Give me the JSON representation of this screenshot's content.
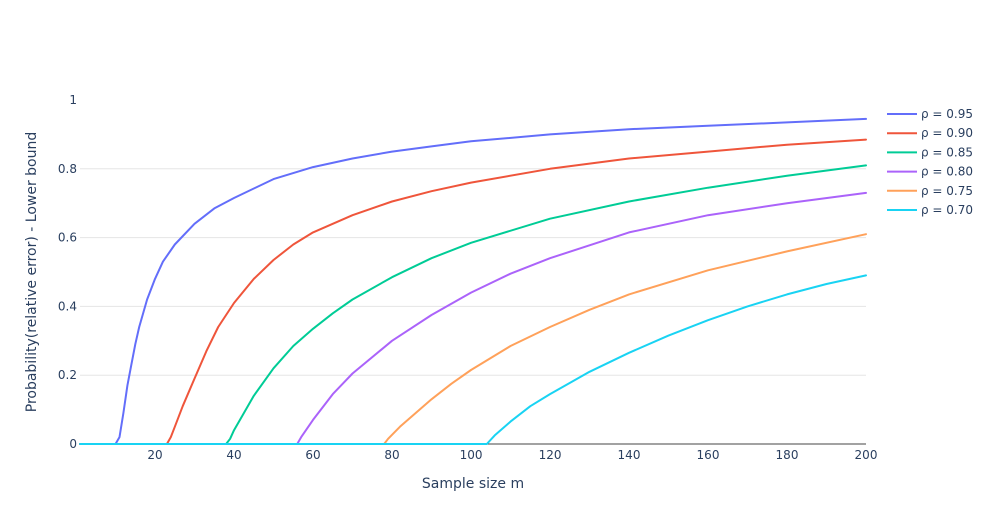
{
  "chart_data": {
    "type": "line",
    "title": "",
    "xlabel": "Sample size m",
    "ylabel": "Probability(relative error) - Lower bound",
    "xlim": [
      1,
      200
    ],
    "ylim": [
      0,
      1
    ],
    "x_ticks": [
      20,
      40,
      60,
      80,
      100,
      120,
      140,
      160,
      180,
      200
    ],
    "y_ticks": [
      0,
      0.2,
      0.4,
      0.6,
      0.8,
      1
    ],
    "x_tick_labels": [
      "20",
      "40",
      "60",
      "80",
      "100",
      "120",
      "140",
      "160",
      "180",
      "200"
    ],
    "y_tick_labels": [
      "0",
      "0.2",
      "0.4",
      "0.6",
      "0.8",
      "1"
    ],
    "grid": true,
    "legend_position": "top-right",
    "series": [
      {
        "name": "ρ = 0.95",
        "color": "#636efa",
        "x": [
          1,
          10,
          11,
          12,
          13,
          14,
          15,
          16,
          18,
          20,
          22,
          25,
          30,
          35,
          40,
          50,
          60,
          70,
          80,
          90,
          100,
          120,
          140,
          160,
          180,
          200
        ],
        "y": [
          0,
          0,
          0.02,
          0.09,
          0.17,
          0.23,
          0.29,
          0.34,
          0.42,
          0.48,
          0.53,
          0.58,
          0.64,
          0.685,
          0.715,
          0.77,
          0.805,
          0.83,
          0.85,
          0.865,
          0.88,
          0.9,
          0.915,
          0.925,
          0.935,
          0.945
        ]
      },
      {
        "name": "ρ = 0.90",
        "color": "#ef553b",
        "x": [
          1,
          23,
          24,
          25,
          27,
          30,
          33,
          36,
          40,
          45,
          50,
          55,
          60,
          70,
          80,
          90,
          100,
          120,
          140,
          160,
          180,
          200
        ],
        "y": [
          0,
          0,
          0.02,
          0.05,
          0.11,
          0.19,
          0.27,
          0.34,
          0.41,
          0.48,
          0.535,
          0.58,
          0.615,
          0.665,
          0.705,
          0.735,
          0.76,
          0.8,
          0.83,
          0.85,
          0.87,
          0.885
        ]
      },
      {
        "name": "ρ = 0.85",
        "color": "#00cc96",
        "x": [
          1,
          38,
          39,
          40,
          42,
          45,
          50,
          55,
          60,
          65,
          70,
          80,
          90,
          100,
          120,
          140,
          160,
          180,
          200
        ],
        "y": [
          0,
          0,
          0.015,
          0.04,
          0.08,
          0.14,
          0.22,
          0.285,
          0.335,
          0.38,
          0.42,
          0.485,
          0.54,
          0.585,
          0.655,
          0.705,
          0.745,
          0.78,
          0.81
        ]
      },
      {
        "name": "ρ = 0.80",
        "color": "#ab63fa",
        "x": [
          1,
          56,
          57,
          60,
          65,
          70,
          80,
          90,
          100,
          110,
          120,
          140,
          160,
          180,
          200
        ],
        "y": [
          0,
          0,
          0.02,
          0.07,
          0.145,
          0.205,
          0.3,
          0.375,
          0.44,
          0.495,
          0.54,
          0.615,
          0.665,
          0.7,
          0.73
        ]
      },
      {
        "name": "ρ = 0.75",
        "color": "#ffa15a",
        "x": [
          1,
          78,
          79,
          82,
          86,
          90,
          95,
          100,
          110,
          120,
          130,
          140,
          160,
          180,
          200
        ],
        "y": [
          0,
          0,
          0.015,
          0.05,
          0.09,
          0.13,
          0.175,
          0.215,
          0.285,
          0.34,
          0.39,
          0.435,
          0.505,
          0.56,
          0.61
        ]
      },
      {
        "name": "ρ = 0.70",
        "color": "#19d3f3",
        "x": [
          1,
          104,
          106,
          110,
          115,
          120,
          130,
          140,
          150,
          160,
          170,
          180,
          190,
          200
        ],
        "y": [
          0,
          0,
          0.025,
          0.065,
          0.11,
          0.145,
          0.21,
          0.265,
          0.315,
          0.36,
          0.4,
          0.435,
          0.465,
          0.49
        ]
      }
    ]
  }
}
